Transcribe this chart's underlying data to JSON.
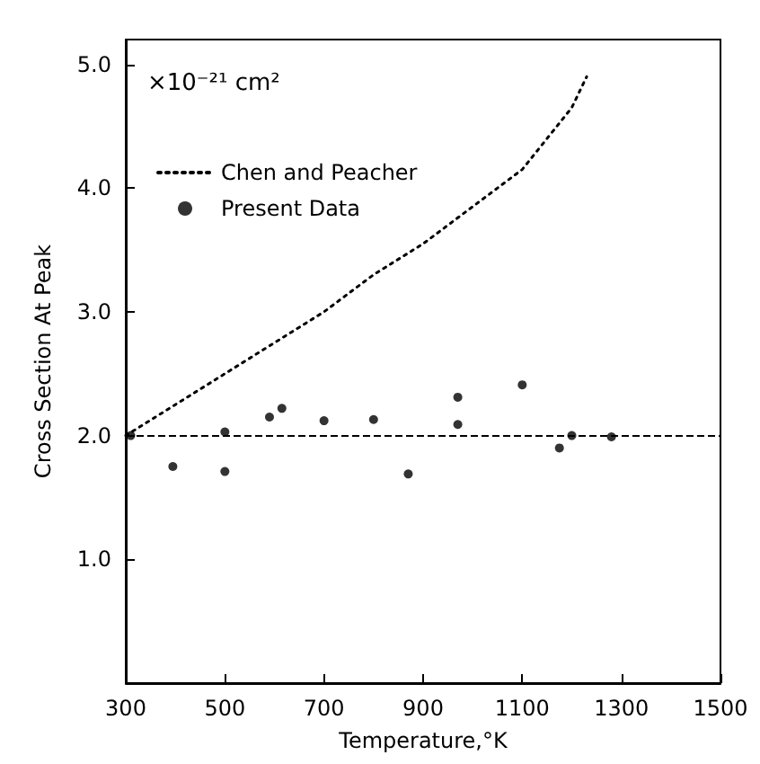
{
  "chart_data": {
    "type": "scatter",
    "xlabel": "Temperature,°K",
    "ylabel": "Cross Section At Peak",
    "annotations": [
      "×10⁻²¹ cm²"
    ],
    "xlim": [
      300,
      1500
    ],
    "xticks": [
      300,
      500,
      700,
      900,
      1100,
      1300,
      1500
    ],
    "ylim": [
      0,
      5.2
    ],
    "yticks": [
      {
        "value": 1,
        "label": "1.0"
      },
      {
        "value": 2,
        "label": "2.0"
      },
      {
        "value": 3,
        "label": "3.0"
      },
      {
        "value": 4,
        "label": "4.0"
      },
      {
        "value": 5,
        "label": "5.0"
      }
    ],
    "grid": false,
    "legend": "top left",
    "ref_lines": [
      {
        "axis": "y",
        "value": 2.0,
        "line_style": "dashed",
        "color": "#000000"
      }
    ],
    "series": [
      {
        "name": "Chen and Peacher",
        "type": "line",
        "line_style": "dotted",
        "marker": "none",
        "color": "#000000",
        "x": [
          300,
          400,
          500,
          600,
          700,
          800,
          900,
          1000,
          1100,
          1200,
          1230
        ],
        "values": [
          2.0,
          2.25,
          2.5,
          2.75,
          3.0,
          3.3,
          3.55,
          3.85,
          4.15,
          4.65,
          4.9
        ]
      },
      {
        "name": "Present Data",
        "marker": "circle",
        "color": "#000000",
        "x": [
          310,
          395,
          500,
          500,
          590,
          615,
          700,
          800,
          870,
          970,
          970,
          1100,
          1175,
          1200,
          1280
        ],
        "values": [
          2.0,
          1.75,
          1.71,
          2.03,
          2.15,
          2.22,
          2.12,
          2.13,
          1.69,
          2.31,
          2.09,
          2.41,
          1.9,
          2.0,
          1.99
        ]
      }
    ]
  }
}
